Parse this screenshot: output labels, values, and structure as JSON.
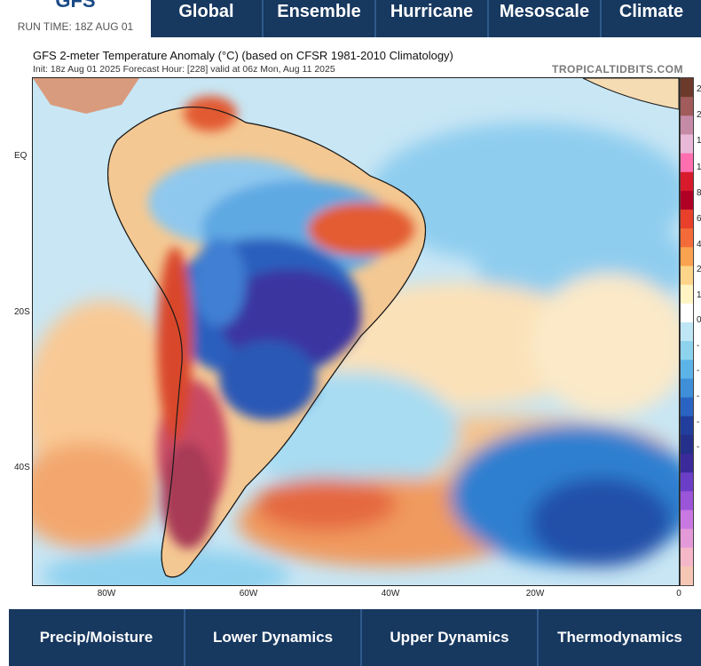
{
  "header": {
    "brand": "GFS",
    "run_time": "RUN TIME: 18Z AUG 01",
    "nav": [
      "Global",
      "Ensemble",
      "Hurricane",
      "Mesoscale",
      "Climate"
    ]
  },
  "map": {
    "title": "GFS 2-meter Temperature Anomaly (°C) (based on CFSR 1981-2010 Climatology)",
    "subtitle": "Init: 18z Aug 01 2025   Forecast Hour: [228]   valid at 06z Mon, Aug 11 2025",
    "credit": "TROPICALTIDBITS.COM",
    "lat_labels": [
      "EQ",
      "20S",
      "40S"
    ],
    "lon_labels": [
      "80W",
      "60W",
      "40W",
      "20W",
      "0"
    ],
    "colorbar": {
      "labels": [
        "2",
        "2",
        "1",
        "1",
        "8",
        "6",
        "4",
        "2",
        "1",
        "0",
        "-",
        "-",
        "-",
        "-",
        "-"
      ],
      "colors": [
        "#6b3a2a",
        "#a05b5a",
        "#c58aa6",
        "#e8b8d8",
        "#ff6fb0",
        "#d81b2c",
        "#b00026",
        "#e8402a",
        "#f26b38",
        "#f9a24f",
        "#fcd58a",
        "#fff4c4",
        "#ffffff",
        "#bfe6f5",
        "#8dd3ee",
        "#5cb4e6",
        "#3e8fd8",
        "#2a64c2",
        "#213e9c",
        "#243089",
        "#3a2a9a",
        "#6a3ec7",
        "#9b55d9",
        "#c978e2",
        "#e49ad8",
        "#f3b7c8",
        "#f6c6b4"
      ]
    }
  },
  "bottom_nav": [
    "Precip/Moisture",
    "Lower Dynamics",
    "Upper Dynamics",
    "Thermodynamics"
  ]
}
